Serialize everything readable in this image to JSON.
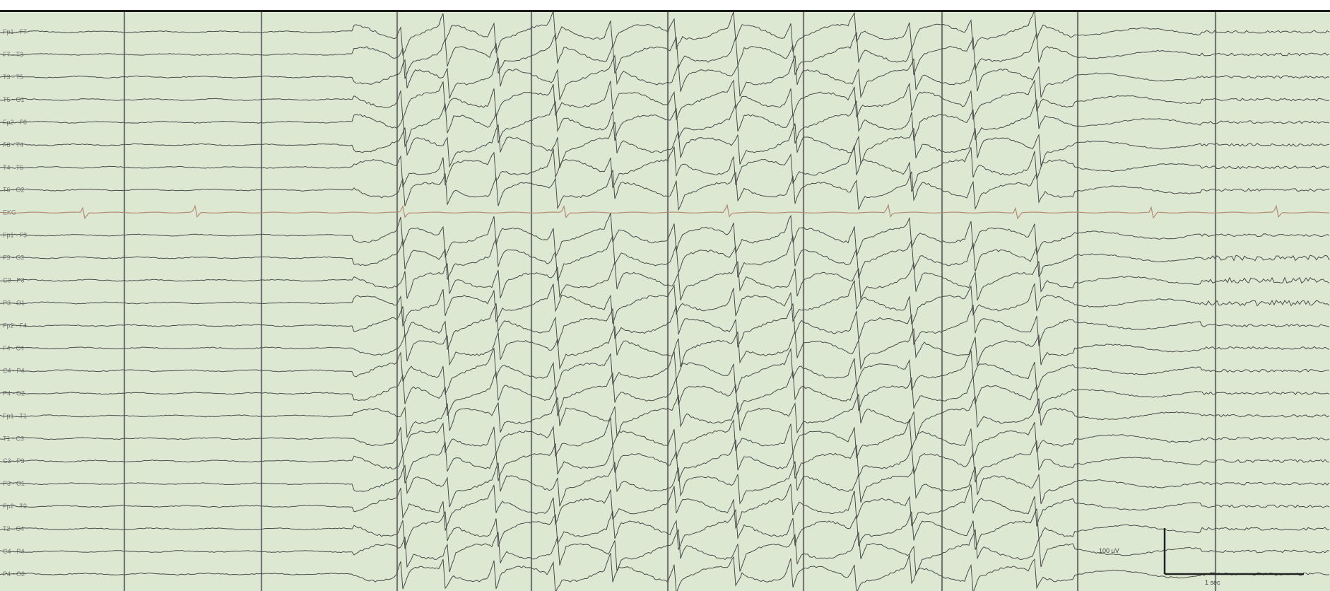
{
  "recording": {
    "background_color": "#dde8d3",
    "trace_color": "#4a4a4a",
    "ekg_color": "#b58a70",
    "divider_color": "#5b5b5b",
    "channel_count": 25,
    "ekg_channel_index": 9,
    "channels": [
      "Fp1 - F7",
      "F7 - T3",
      "T3 - T5",
      "T5 - O1",
      "Fp2 - F8",
      "F8 - T4",
      "T4 - T6",
      "T6 - O2",
      "EKG",
      "Fp1 - F3",
      "F3 - C3",
      "C3 - P3",
      "P3 - O1",
      "Fp2 - F4",
      "F4 - C4",
      "C4 - P4",
      "P4 - O2",
      "Fp1 - T1",
      "T1 - C3",
      "C3 - P3",
      "P3 - O1",
      "Fp2 - T2",
      "T2 - C4",
      "C4 - P4",
      "P4 - O2"
    ],
    "scale_bar": {
      "amplitude_label": "100 µV",
      "time_label": "1 sec"
    }
  }
}
